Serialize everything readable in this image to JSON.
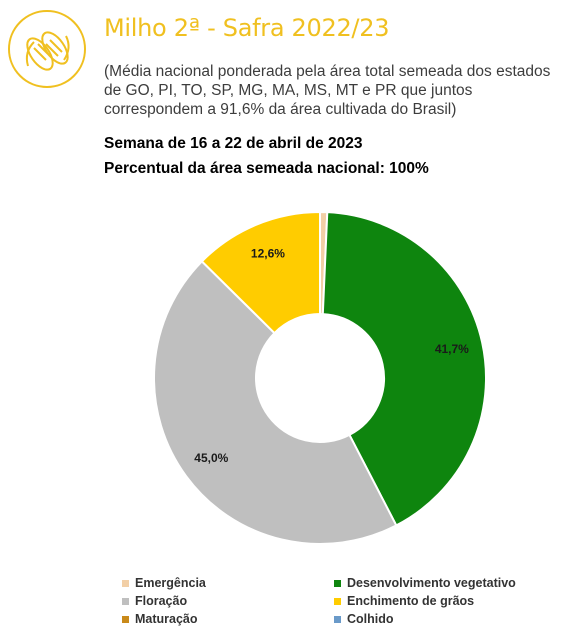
{
  "header": {
    "title": "Milho 2ª - Safra 2022/23",
    "subtitle": "(Média nacional ponderada pela área total semeada dos estados de GO, PI, TO, SP, MG, MA, MS, MT e PR que juntos correspondem a 91,6% da área cultivada do Brasil)",
    "week": "Semana de 16 a 22 de abril de 2023",
    "sown_percent": "Percentual da área semeada nacional: 100%",
    "logo_icon": "corn-icon",
    "accent_color": "#f0c020"
  },
  "chart_data": {
    "type": "pie",
    "style": "donut",
    "categories": [
      "Emergência",
      "Desenvolvimento vegetativo",
      "Floração",
      "Enchimento de grãos",
      "Maturação",
      "Colhido"
    ],
    "values": [
      0.7,
      41.7,
      45.0,
      12.6,
      0,
      0
    ],
    "labels": [
      "",
      "41,7%",
      "45,0%",
      "12,6%",
      "",
      ""
    ],
    "colors": [
      "#f2cfa6",
      "#0e850e",
      "#bfbfbf",
      "#ffcc00",
      "#c98a1a",
      "#6a9ac9"
    ],
    "legend_position": "bottom"
  }
}
